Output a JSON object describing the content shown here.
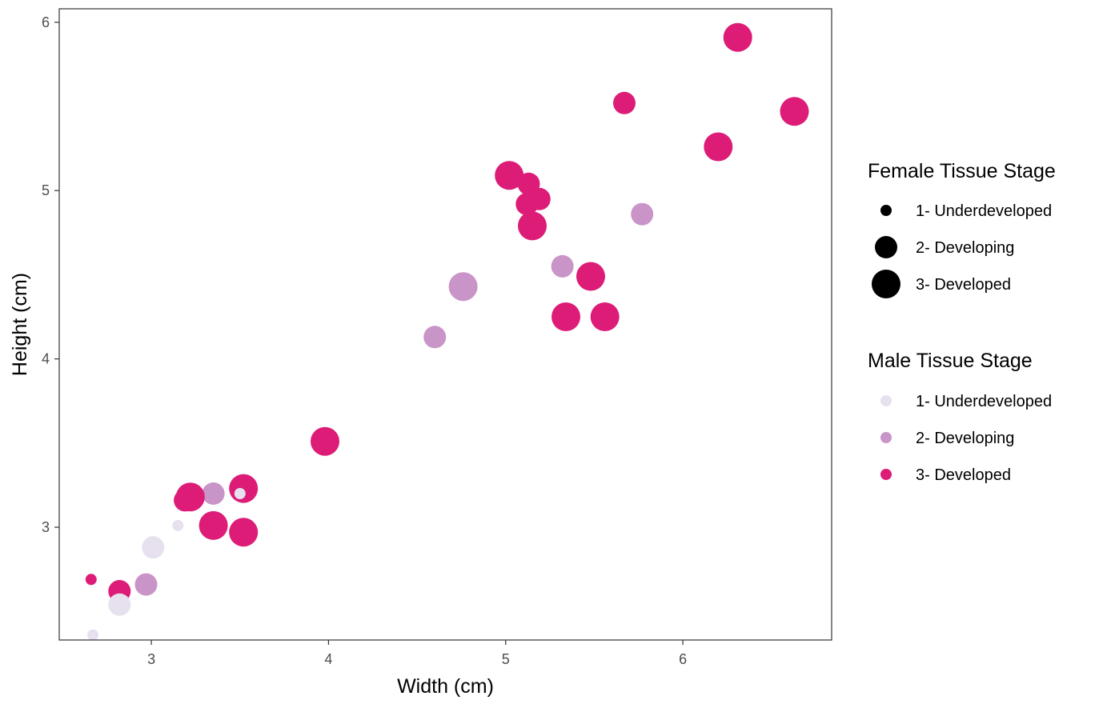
{
  "chart_data": {
    "type": "scatter",
    "xlabel": "Width (cm)",
    "ylabel": "Height (cm)",
    "xlim": [
      2.48,
      6.84
    ],
    "ylim": [
      2.33,
      6.08
    ],
    "x_ticks": [
      3,
      4,
      5,
      6
    ],
    "y_ticks": [
      3,
      4,
      5,
      6
    ],
    "grid": false,
    "size_legend": {
      "title": "Female Tissue Stage",
      "entries": [
        "1- Underdeveloped",
        "2- Developing",
        "3- Developed"
      ]
    },
    "color_legend": {
      "title": "Male Tissue Stage",
      "entries": [
        "1- Underdeveloped",
        "2- Developing",
        "3- Developed"
      ],
      "colors": [
        "#e7e1ef",
        "#c994c7",
        "#dd1c77"
      ]
    },
    "points": [
      {
        "x": 6.31,
        "y": 5.91,
        "female": 3,
        "male": 3
      },
      {
        "x": 6.63,
        "y": 5.47,
        "female": 3,
        "male": 3
      },
      {
        "x": 5.67,
        "y": 5.52,
        "female": 2,
        "male": 3
      },
      {
        "x": 6.2,
        "y": 5.26,
        "female": 3,
        "male": 3
      },
      {
        "x": 5.77,
        "y": 4.86,
        "female": 2,
        "male": 2
      },
      {
        "x": 5.02,
        "y": 5.09,
        "female": 3,
        "male": 3
      },
      {
        "x": 5.13,
        "y": 5.04,
        "female": 2,
        "male": 3
      },
      {
        "x": 5.19,
        "y": 4.95,
        "female": 2,
        "male": 3
      },
      {
        "x": 5.12,
        "y": 4.92,
        "female": 2,
        "male": 3
      },
      {
        "x": 5.15,
        "y": 4.79,
        "female": 3,
        "male": 3
      },
      {
        "x": 5.32,
        "y": 4.55,
        "female": 2,
        "male": 2
      },
      {
        "x": 5.48,
        "y": 4.49,
        "female": 3,
        "male": 3
      },
      {
        "x": 5.34,
        "y": 4.25,
        "female": 3,
        "male": 3
      },
      {
        "x": 5.56,
        "y": 4.25,
        "female": 3,
        "male": 3
      },
      {
        "x": 4.76,
        "y": 4.43,
        "female": 3,
        "male": 2
      },
      {
        "x": 4.6,
        "y": 4.13,
        "female": 2,
        "male": 2
      },
      {
        "x": 3.98,
        "y": 3.51,
        "female": 3,
        "male": 3
      },
      {
        "x": 3.52,
        "y": 3.23,
        "female": 3,
        "male": 3
      },
      {
        "x": 3.5,
        "y": 3.2,
        "female": 1,
        "male": 1
      },
      {
        "x": 3.35,
        "y": 3.2,
        "female": 2,
        "male": 2
      },
      {
        "x": 3.22,
        "y": 3.18,
        "female": 3,
        "male": 3
      },
      {
        "x": 3.19,
        "y": 3.16,
        "female": 2,
        "male": 3
      },
      {
        "x": 3.35,
        "y": 3.01,
        "female": 3,
        "male": 3
      },
      {
        "x": 3.52,
        "y": 2.97,
        "female": 3,
        "male": 3
      },
      {
        "x": 3.15,
        "y": 3.01,
        "female": 1,
        "male": 1
      },
      {
        "x": 3.01,
        "y": 2.88,
        "female": 2,
        "male": 1
      },
      {
        "x": 2.97,
        "y": 2.66,
        "female": 2,
        "male": 2
      },
      {
        "x": 2.82,
        "y": 2.62,
        "female": 2,
        "male": 3
      },
      {
        "x": 2.82,
        "y": 2.54,
        "female": 2,
        "male": 1
      },
      {
        "x": 2.66,
        "y": 2.69,
        "female": 1,
        "male": 3
      },
      {
        "x": 2.67,
        "y": 2.36,
        "female": 1,
        "male": 1
      }
    ]
  }
}
